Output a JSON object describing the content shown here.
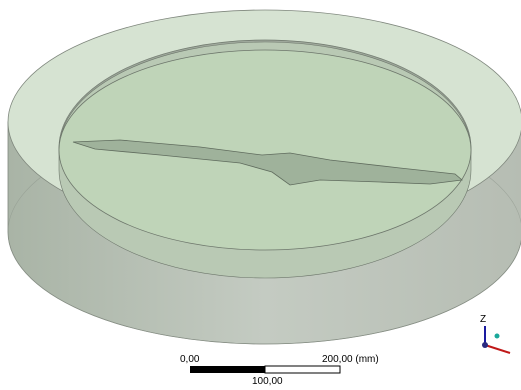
{
  "viewport": {
    "scale_bar": {
      "start_label": "0,00",
      "end_label": "200,00 (mm)",
      "mid_label": "100,00"
    },
    "triad": {
      "axis_label": "Z"
    }
  }
}
